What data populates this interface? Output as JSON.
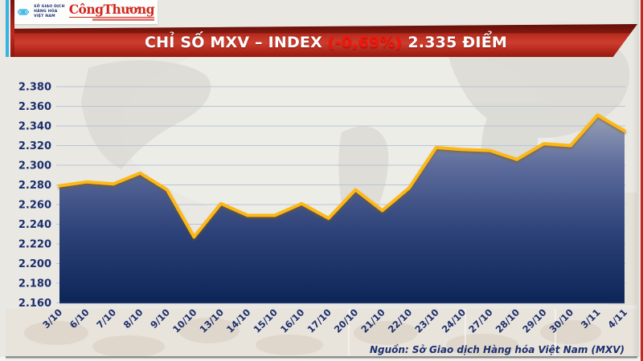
{
  "page": {
    "background": "#e9e8e3",
    "accent_cyan": "#35b4e5",
    "accent_red": "#c5271c"
  },
  "header": {
    "mxv_logo": {
      "icon": "mxv-chevron-diamonds",
      "org_lines": [
        "SỞ GIAO DỊCH",
        "HÀNG HÓA",
        "VIỆT NAM"
      ]
    },
    "congthuong_logo": "CôngThương"
  },
  "banner": {
    "title": "CHỈ SỐ MXV – INDEX",
    "change": "(-0,69%)",
    "value": "2.335 ĐIỂM",
    "change_color": "#f5150a",
    "background_red": "#c53627"
  },
  "chart_data": {
    "type": "area",
    "title": "CHỈ SỐ MXV – INDEX (-0,69%) 2.335 ĐIỂM",
    "categories": [
      "3/10",
      "6/10",
      "7/10",
      "8/10",
      "9/10",
      "10/10",
      "13/10",
      "14/10",
      "15/10",
      "16/10",
      "17/10",
      "20/10",
      "21/10",
      "22/10",
      "23/10",
      "24/10",
      "27/10",
      "28/10",
      "29/10",
      "30/10",
      "3/11",
      "4/11"
    ],
    "values": [
      2279,
      2283,
      2281,
      2292,
      2275,
      2227,
      2261,
      2249,
      2249,
      2261,
      2246,
      2275,
      2254,
      2277,
      2318,
      2316,
      2315,
      2306,
      2322,
      2320,
      2351,
      2335
    ],
    "ylim": [
      2160,
      2380
    ],
    "ytick_step": 20,
    "ytick_labels": [
      "2.380",
      "2.360",
      "2.340",
      "2.320",
      "2.300",
      "2.280",
      "2.260",
      "2.240",
      "2.220",
      "2.200",
      "2.180",
      "2.160"
    ],
    "grid": true,
    "legend": false,
    "xlabel": "",
    "ylabel": "",
    "line_color": "#fdb813",
    "line_shadow_color": "#8a5a00",
    "area_gradient": [
      "#9aa3b8",
      "#5d6c9c",
      "#2e4379",
      "#0c2557"
    ],
    "grid_color": "#b9c5d6",
    "label_color": "#1c2f6e"
  },
  "footer": {
    "source": "Nguồn: Sở Giao dịch Hàng hóa Việt Nam (MXV)"
  }
}
